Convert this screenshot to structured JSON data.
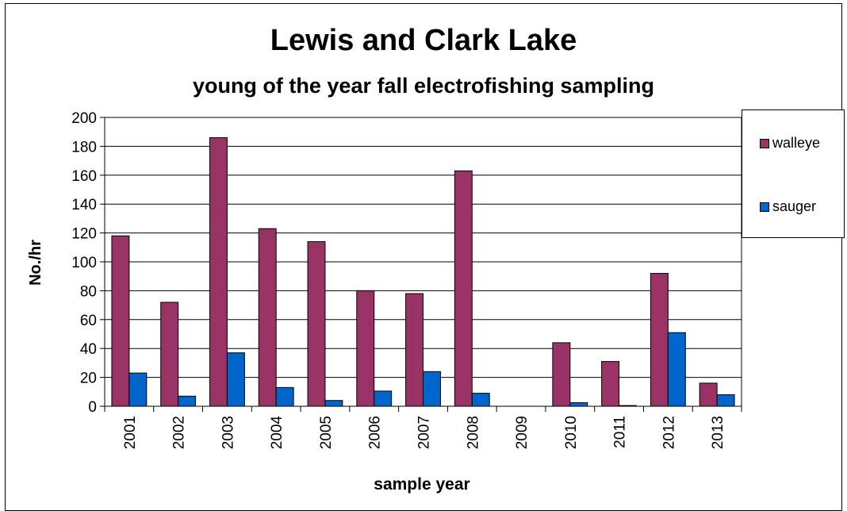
{
  "chart_data": {
    "type": "bar",
    "title": "Lewis and Clark Lake",
    "subtitle": "young of the year fall electrofishing sampling",
    "xlabel": "sample year",
    "ylabel": "No./hr",
    "ylim": [
      0,
      200
    ],
    "yticks": [
      0,
      20,
      40,
      60,
      80,
      100,
      120,
      140,
      160,
      180,
      200
    ],
    "categories": [
      "2001",
      "2002",
      "2003",
      "2004",
      "2005",
      "2006",
      "2007",
      "2008",
      "2009",
      "2010",
      "2011",
      "2012",
      "2013"
    ],
    "series": [
      {
        "name": "walleye",
        "color": "#993366",
        "values": [
          118,
          72,
          186,
          123,
          114,
          80,
          78,
          163,
          0,
          44,
          31,
          92,
          16
        ]
      },
      {
        "name": "sauger",
        "color": "#0066CC",
        "values": [
          23,
          7,
          37,
          13,
          4,
          10.5,
          24,
          9,
          0,
          2.5,
          0.5,
          51,
          8
        ]
      }
    ],
    "grid": true,
    "legend": "right"
  }
}
